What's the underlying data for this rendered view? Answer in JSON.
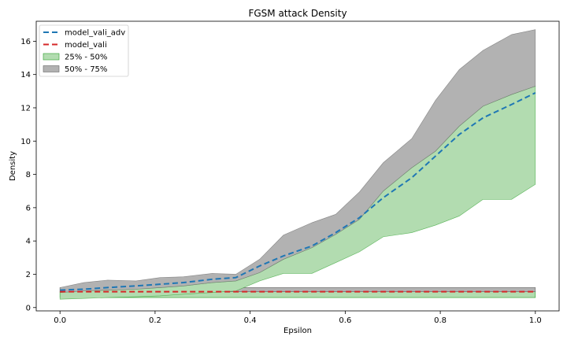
{
  "chart_data": {
    "type": "area",
    "title": "FGSM attack Density",
    "xlabel": "Epsilon",
    "ylabel": "Density",
    "xlim": [
      -0.05,
      1.05
    ],
    "ylim": [
      -0.2,
      17.2
    ],
    "xticks": [
      0.0,
      0.2,
      0.4,
      0.6,
      0.8,
      1.0
    ],
    "xtick_labels": [
      "0.0",
      "0.2",
      "0.4",
      "0.6",
      "0.8",
      "1.0"
    ],
    "yticks": [
      0,
      2,
      4,
      6,
      8,
      10,
      12,
      14,
      16
    ],
    "ytick_labels": [
      "0",
      "2",
      "4",
      "6",
      "8",
      "10",
      "12",
      "14",
      "16"
    ],
    "grid": false,
    "legend_position": "top-left",
    "x": [
      0.0,
      0.05,
      0.1,
      0.16,
      0.21,
      0.26,
      0.32,
      0.37,
      0.42,
      0.47,
      0.53,
      0.58,
      0.63,
      0.68,
      0.74,
      0.79,
      0.84,
      0.89,
      0.95,
      1.0
    ],
    "series": [
      {
        "name": "model_vali_adv",
        "kind": "line",
        "style": "dashed",
        "color": "#1f77b4",
        "values": [
          1.05,
          1.1,
          1.2,
          1.3,
          1.4,
          1.5,
          1.7,
          1.8,
          2.5,
          3.1,
          3.7,
          4.5,
          5.4,
          6.6,
          7.8,
          9.1,
          10.4,
          11.4,
          12.2,
          12.9
        ]
      },
      {
        "name": "model_vali",
        "kind": "line",
        "style": "dashed",
        "color": "#d62728",
        "values": [
          0.95,
          0.95,
          0.95,
          0.95,
          0.95,
          0.95,
          0.95,
          0.95,
          0.95,
          0.95,
          0.95,
          0.95,
          0.95,
          0.95,
          0.95,
          0.95,
          0.95,
          0.95,
          0.95,
          0.95
        ]
      },
      {
        "name": "25% - 50%",
        "kind": "band",
        "color": "#b2dcb0",
        "edge_color": "#2ca02c",
        "lower": [
          0.5,
          0.55,
          0.6,
          0.65,
          0.7,
          0.8,
          0.9,
          1.0,
          1.6,
          2.05,
          2.05,
          2.7,
          3.35,
          4.25,
          4.5,
          4.95,
          5.5,
          6.5,
          6.5,
          7.4
        ],
        "upper": [
          0.9,
          1.0,
          1.05,
          1.1,
          1.2,
          1.3,
          1.5,
          1.6,
          2.1,
          2.9,
          3.6,
          4.4,
          5.3,
          7.0,
          8.4,
          9.4,
          10.9,
          12.1,
          12.8,
          13.3
        ]
      },
      {
        "name": "50% - 75%",
        "kind": "band",
        "color": "#b2b2b2",
        "edge_color": "#666666",
        "lower": [
          0.9,
          1.0,
          1.05,
          1.1,
          1.2,
          1.3,
          1.5,
          1.6,
          2.1,
          2.9,
          3.6,
          4.4,
          5.3,
          7.0,
          8.4,
          9.4,
          10.9,
          12.1,
          12.8,
          13.3
        ],
        "upper": [
          1.2,
          1.5,
          1.65,
          1.6,
          1.8,
          1.85,
          2.05,
          2.0,
          2.9,
          4.35,
          5.1,
          5.6,
          6.95,
          8.7,
          10.15,
          12.45,
          14.3,
          15.45,
          16.4,
          16.7
        ]
      }
    ],
    "baseline_bands": [
      {
        "series": "25% - 50%",
        "x": [
          0.0,
          1.0
        ],
        "lower": 0.6,
        "upper": 0.95
      },
      {
        "series": "50% - 75%",
        "x": [
          0.0,
          1.0
        ],
        "lower": 0.95,
        "upper": 1.2
      }
    ]
  }
}
